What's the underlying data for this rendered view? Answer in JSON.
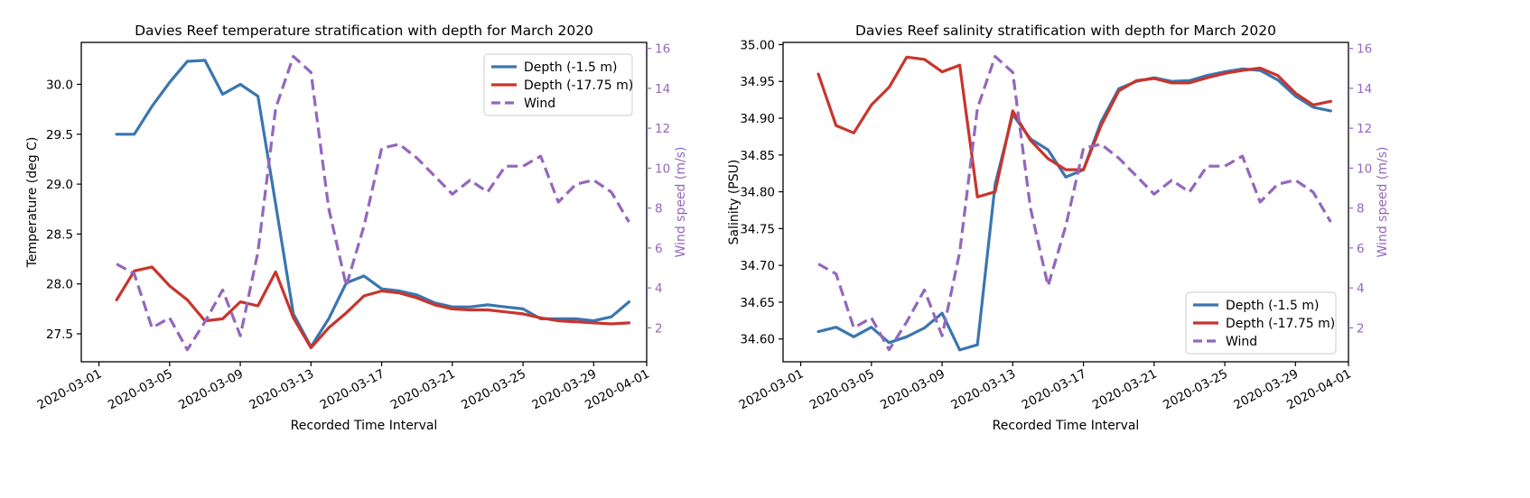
{
  "chart_data": [
    {
      "type": "line",
      "title": "Davies Reef temperature stratification with depth for March 2020",
      "xlabel": "Recorded Time Interval",
      "ylabel": "Temperature (deg C)",
      "y2label": "Wind speed (m/s)",
      "x_ticks": [
        "2020-03-01",
        "2020-03-05",
        "2020-03-09",
        "2020-03-13",
        "2020-03-17",
        "2020-03-21",
        "2020-03-25",
        "2020-03-29",
        "2020-04-01"
      ],
      "y_ticks": [
        "27.5",
        "28.0",
        "28.5",
        "29.0",
        "29.5",
        "30.0"
      ],
      "y2_ticks": [
        "2",
        "4",
        "6",
        "8",
        "10",
        "12",
        "14",
        "16"
      ],
      "xlim": [
        "2020-02-29",
        "2020-04-01"
      ],
      "ylim": [
        27.22,
        30.42
      ],
      "y2lim": [
        0.3,
        16.3
      ],
      "legend_position": "top-right",
      "x": [
        "2020-03-02",
        "2020-03-03",
        "2020-03-04",
        "2020-03-05",
        "2020-03-06",
        "2020-03-07",
        "2020-03-08",
        "2020-03-09",
        "2020-03-10",
        "2020-03-11",
        "2020-03-12",
        "2020-03-13",
        "2020-03-14",
        "2020-03-15",
        "2020-03-16",
        "2020-03-17",
        "2020-03-18",
        "2020-03-19",
        "2020-03-20",
        "2020-03-21",
        "2020-03-22",
        "2020-03-23",
        "2020-03-24",
        "2020-03-25",
        "2020-03-26",
        "2020-03-27",
        "2020-03-28",
        "2020-03-29",
        "2020-03-30",
        "2020-03-31"
      ],
      "series": [
        {
          "name": "Depth (-1.5 m)",
          "axis": "left",
          "color": "#3a76b0",
          "dashed": false,
          "values": [
            29.5,
            29.5,
            29.78,
            30.02,
            30.23,
            30.24,
            29.9,
            30.0,
            29.88,
            28.8,
            27.7,
            27.37,
            27.65,
            28.01,
            28.08,
            27.95,
            27.93,
            27.89,
            27.81,
            27.77,
            27.77,
            27.79,
            27.77,
            27.75,
            27.65,
            27.65,
            27.65,
            27.63,
            27.67,
            27.82
          ]
        },
        {
          "name": "Depth (-17.75 m)",
          "axis": "left",
          "color": "#c8352c",
          "dashed": false,
          "values": [
            27.84,
            28.13,
            28.17,
            27.98,
            27.84,
            27.63,
            27.65,
            27.82,
            27.78,
            28.12,
            27.66,
            27.36,
            27.56,
            27.71,
            27.88,
            27.93,
            27.91,
            27.86,
            27.79,
            27.75,
            27.74,
            27.74,
            27.72,
            27.7,
            27.66,
            27.63,
            27.62,
            27.61,
            27.6,
            27.61
          ]
        },
        {
          "name": "Wind",
          "axis": "right",
          "color": "#9467bd",
          "dashed": true,
          "values": [
            5.2,
            4.7,
            2.0,
            2.5,
            0.9,
            2.3,
            3.9,
            1.6,
            5.8,
            13.0,
            15.6,
            14.8,
            8.0,
            4.1,
            7.1,
            11.0,
            11.2,
            10.5,
            9.6,
            8.7,
            9.4,
            8.8,
            10.1,
            10.1,
            10.6,
            8.3,
            9.2,
            9.4,
            8.8,
            7.3
          ]
        }
      ]
    },
    {
      "type": "line",
      "title": "Davies Reef salinity stratification with depth for March 2020",
      "xlabel": "Recorded Time Interval",
      "ylabel": "Salinity (PSU)",
      "y2label": "Wind speed (m/s)",
      "x_ticks": [
        "2020-03-01",
        "2020-03-05",
        "2020-03-09",
        "2020-03-13",
        "2020-03-17",
        "2020-03-21",
        "2020-03-25",
        "2020-03-29",
        "2020-04-01"
      ],
      "y_ticks": [
        "34.60",
        "34.65",
        "34.70",
        "34.75",
        "34.80",
        "34.85",
        "34.90",
        "34.95",
        "35.00"
      ],
      "y2_ticks": [
        "2",
        "4",
        "6",
        "8",
        "10",
        "12",
        "14",
        "16"
      ],
      "xlim": [
        "2020-02-29",
        "2020-04-01"
      ],
      "ylim": [
        34.569,
        35.003
      ],
      "y2lim": [
        0.3,
        16.3
      ],
      "legend_position": "bottom-right",
      "x": [
        "2020-03-02",
        "2020-03-03",
        "2020-03-04",
        "2020-03-05",
        "2020-03-06",
        "2020-03-07",
        "2020-03-08",
        "2020-03-09",
        "2020-03-10",
        "2020-03-11",
        "2020-03-12",
        "2020-03-13",
        "2020-03-14",
        "2020-03-15",
        "2020-03-16",
        "2020-03-17",
        "2020-03-18",
        "2020-03-19",
        "2020-03-20",
        "2020-03-21",
        "2020-03-22",
        "2020-03-23",
        "2020-03-24",
        "2020-03-25",
        "2020-03-26",
        "2020-03-27",
        "2020-03-28",
        "2020-03-29",
        "2020-03-30",
        "2020-03-31"
      ],
      "series": [
        {
          "name": "Depth (-1.5 m)",
          "axis": "left",
          "color": "#3a76b0",
          "dashed": false,
          "values": [
            34.61,
            34.616,
            34.603,
            34.616,
            34.595,
            34.603,
            34.615,
            34.635,
            34.585,
            34.592,
            34.81,
            34.905,
            34.872,
            34.857,
            34.82,
            34.83,
            34.895,
            34.94,
            34.95,
            34.955,
            34.95,
            34.951,
            34.958,
            34.963,
            34.967,
            34.965,
            34.952,
            34.93,
            34.915,
            34.91
          ]
        },
        {
          "name": "Depth (-17.75 m)",
          "axis": "left",
          "color": "#c8352c",
          "dashed": false,
          "values": [
            34.96,
            34.89,
            34.88,
            34.918,
            34.942,
            34.983,
            34.98,
            34.963,
            34.972,
            34.793,
            34.8,
            34.91,
            34.87,
            34.845,
            34.83,
            34.83,
            34.89,
            34.937,
            34.951,
            34.954,
            34.948,
            34.948,
            34.955,
            34.961,
            34.965,
            34.968,
            34.958,
            34.934,
            34.918,
            34.923
          ]
        },
        {
          "name": "Wind",
          "axis": "right",
          "color": "#9467bd",
          "dashed": true,
          "values": [
            5.2,
            4.7,
            2.0,
            2.5,
            0.9,
            2.3,
            3.9,
            1.6,
            5.8,
            13.0,
            15.6,
            14.8,
            8.0,
            4.1,
            7.1,
            11.0,
            11.2,
            10.5,
            9.6,
            8.7,
            9.4,
            8.8,
            10.1,
            10.1,
            10.6,
            8.3,
            9.2,
            9.4,
            8.8,
            7.3
          ]
        }
      ]
    }
  ]
}
